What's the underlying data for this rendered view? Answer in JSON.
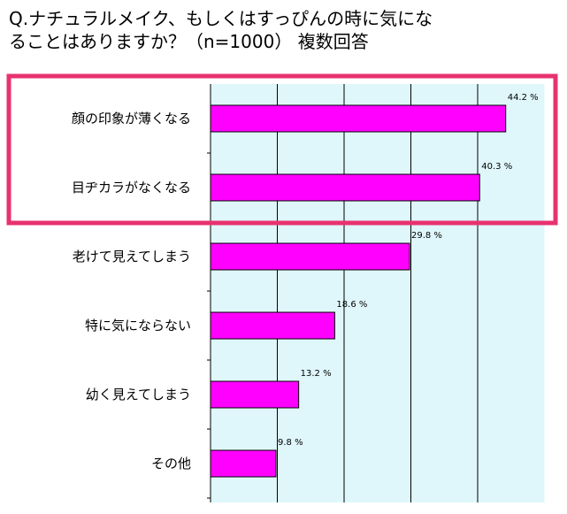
{
  "title": {
    "line1": "Q.ナチュラルメイク、もしくはすっぴんの時に気にな",
    "line2": "ることはありますか？（n=1000） 複数回答"
  },
  "colors": {
    "plot_background": "#dff7fb",
    "bar": "#ff00ff",
    "highlight_frame": "#e8326f"
  },
  "chart_data": {
    "type": "bar",
    "orientation": "horizontal",
    "categories": [
      "顔の印象が薄くなる",
      "目ヂカラがなくなる",
      "老けて見えてしまう",
      "特に気にならない",
      "幼く見えてしまう",
      "その他"
    ],
    "values": [
      44.2,
      40.3,
      29.8,
      18.6,
      13.2,
      9.8
    ],
    "value_labels": [
      "44.2 %",
      "40.3 %",
      "29.8 %",
      "18.6 %",
      "13.2 %",
      "9.8 %"
    ],
    "xlim": [
      0,
      50
    ],
    "x_gridlines": [
      10,
      20,
      30,
      40
    ],
    "highlighted_categories": [
      "顔の印象が薄くなる",
      "目ヂカラがなくなる"
    ],
    "title": "Q.ナチュラルメイク、もしくはすっぴんの時に気になることはありますか？（n=1000） 複数回答",
    "xlabel": "",
    "ylabel": ""
  }
}
